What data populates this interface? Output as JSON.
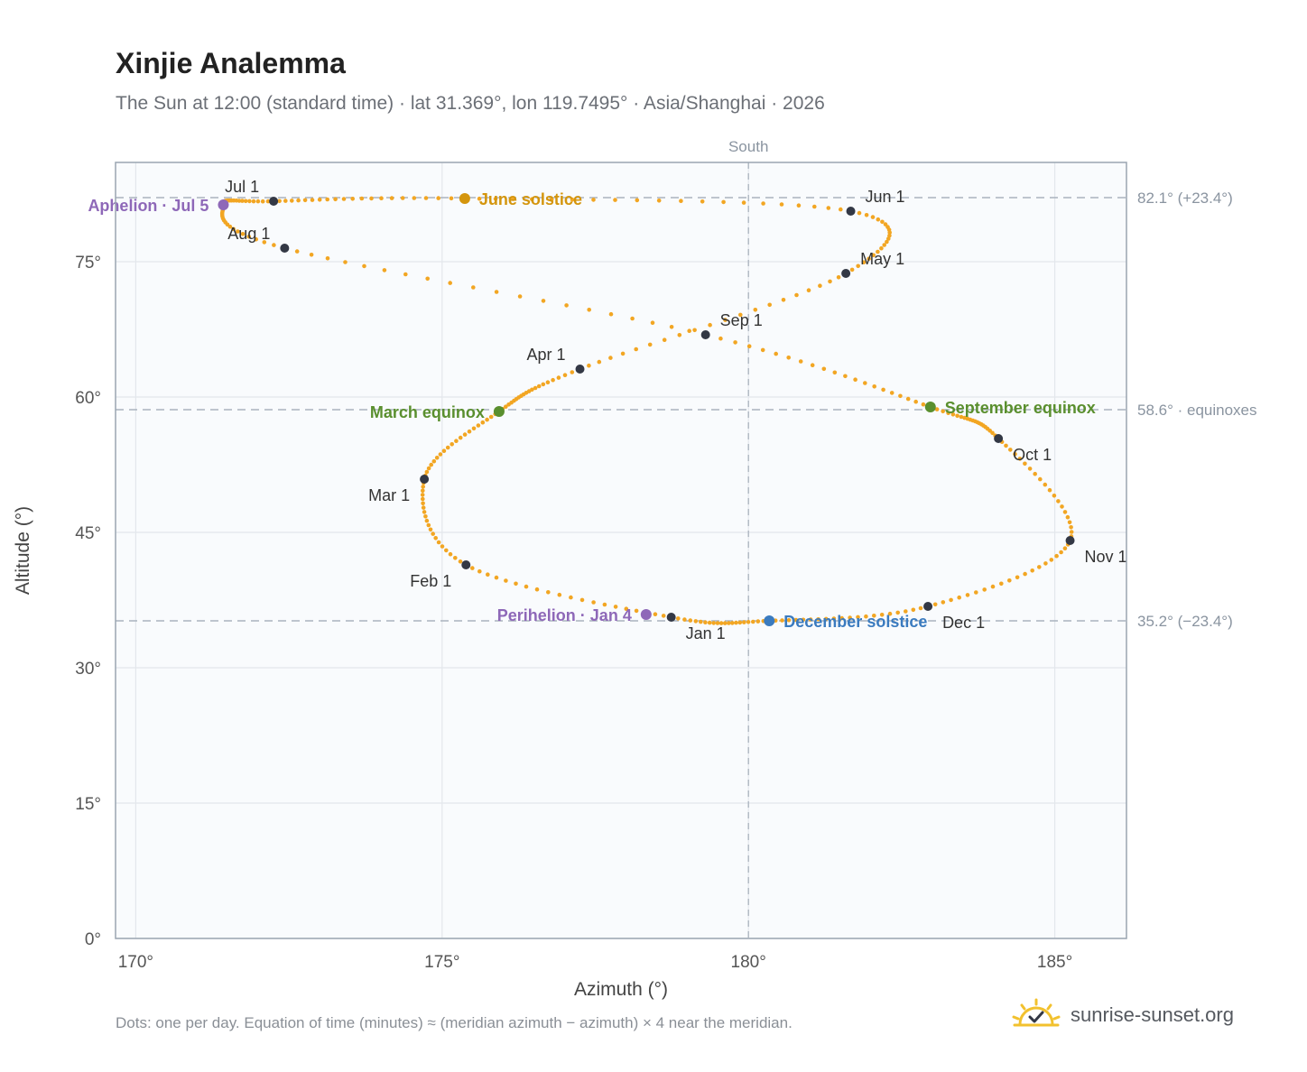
{
  "chart_title": "Xinjie Analemma",
  "chart_subtitle": "The Sun at 12:00 (standard time) · lat 31.369°, lon 119.7495° · Asia/Shanghai · 2026",
  "footnote": "Dots: one per day. Equation of time (minutes) ≈ (meridian azimuth − azimuth) × 4 near the meridian.",
  "brand": {
    "name": "sunrise-sunset.org",
    "icon": "sun-logo-icon"
  },
  "colors": {
    "trace": "#f2a623",
    "month_marker": "#333845",
    "equinox": "#5a8f2e",
    "june_solstice": "#d4950d",
    "december_solstice": "#3b7bbf",
    "apsis": "#8e68b8",
    "reference_line": "#aab3be",
    "plot_background": "#f9fbfd",
    "grid": "#e3e7ec",
    "axis_frame": "#9aa5b1"
  },
  "chart_data": {
    "type": "scatter",
    "xlabel": "Azimuth (°)",
    "ylabel": "Altitude (°)",
    "xlim": [
      169.67,
      186.17
    ],
    "ylim": [
      0,
      86
    ],
    "x_ticks": [
      170,
      175,
      180,
      185
    ],
    "x_tick_labels": [
      "170°",
      "175°",
      "180°",
      "185°"
    ],
    "y_ticks": [
      0,
      15,
      30,
      45,
      60,
      75
    ],
    "y_tick_labels": [
      "0°",
      "15°",
      "30°",
      "45°",
      "60°",
      "75°"
    ],
    "grid": true,
    "meridian": {
      "azimuth": 180,
      "label": "South"
    },
    "reference_lines": [
      {
        "altitude": 82.1,
        "label": "82.1° (+23.4°)"
      },
      {
        "altitude": 58.6,
        "label": "58.6° · equinoxes"
      },
      {
        "altitude": 35.2,
        "label": "35.2° (−23.4°)"
      }
    ],
    "daily_note": "one dot per day",
    "path_anchors": [
      {
        "date": "Jan 1",
        "azimuth": 178.74,
        "altitude": 35.6
      },
      {
        "date": "Feb 1",
        "azimuth": 175.39,
        "altitude": 41.4
      },
      {
        "date": "Mar 1",
        "azimuth": 174.71,
        "altitude": 50.9
      },
      {
        "date": "Mar 20",
        "azimuth": 175.93,
        "altitude": 58.4
      },
      {
        "date": "Apr 1",
        "azimuth": 177.25,
        "altitude": 63.1
      },
      {
        "date": "May 1",
        "azimuth": 181.59,
        "altitude": 73.7
      },
      {
        "date": "Jun 1",
        "azimuth": 181.67,
        "altitude": 80.6
      },
      {
        "date": "Jun 21",
        "azimuth": 175.37,
        "altitude": 82.0
      },
      {
        "date": "Jul 1",
        "azimuth": 172.25,
        "altitude": 81.7
      },
      {
        "date": "Jul 5",
        "azimuth": 171.43,
        "altitude": 81.3
      },
      {
        "date": "Aug 1",
        "azimuth": 172.43,
        "altitude": 76.5
      },
      {
        "date": "Sep 1",
        "azimuth": 179.3,
        "altitude": 66.9
      },
      {
        "date": "Sep 23",
        "azimuth": 182.97,
        "altitude": 58.9
      },
      {
        "date": "Oct 1",
        "azimuth": 184.08,
        "altitude": 55.4
      },
      {
        "date": "Nov 1",
        "azimuth": 185.25,
        "altitude": 44.1
      },
      {
        "date": "Dec 1",
        "azimuth": 182.93,
        "altitude": 36.8
      },
      {
        "date": "Dec 21",
        "azimuth": 180.34,
        "altitude": 35.2
      },
      {
        "date": "Jan 1",
        "azimuth": 178.74,
        "altitude": 35.6
      }
    ],
    "month_markers": [
      {
        "label": "Jan 1",
        "azimuth": 178.74,
        "altitude": 35.6,
        "label_pos": "below-right"
      },
      {
        "label": "Feb 1",
        "azimuth": 175.39,
        "altitude": 41.4,
        "label_pos": "below-left"
      },
      {
        "label": "Mar 1",
        "azimuth": 174.71,
        "altitude": 50.9,
        "label_pos": "below-left"
      },
      {
        "label": "Apr 1",
        "azimuth": 177.25,
        "altitude": 63.1,
        "label_pos": "above-left"
      },
      {
        "label": "May 1",
        "azimuth": 181.59,
        "altitude": 73.7,
        "label_pos": "above-right"
      },
      {
        "label": "Jun 1",
        "azimuth": 181.67,
        "altitude": 80.6,
        "label_pos": "above-right"
      },
      {
        "label": "Jul 1",
        "azimuth": 172.25,
        "altitude": 81.7,
        "label_pos": "above-left"
      },
      {
        "label": "Aug 1",
        "azimuth": 172.43,
        "altitude": 76.5,
        "label_pos": "above-left"
      },
      {
        "label": "Sep 1",
        "azimuth": 179.3,
        "altitude": 66.9,
        "label_pos": "above-right"
      },
      {
        "label": "Oct 1",
        "azimuth": 184.08,
        "altitude": 55.4,
        "label_pos": "below-right"
      },
      {
        "label": "Nov 1",
        "azimuth": 185.25,
        "altitude": 44.1,
        "label_pos": "below-right"
      },
      {
        "label": "Dec 1",
        "azimuth": 182.93,
        "altitude": 36.8,
        "label_pos": "below-right"
      }
    ],
    "events": [
      {
        "label": "June solstice",
        "azimuth": 175.37,
        "altitude": 82.0,
        "color": "#d4950d",
        "label_side": "right"
      },
      {
        "label": "December solstice",
        "azimuth": 180.34,
        "altitude": 35.2,
        "color": "#3b7bbf",
        "label_side": "right"
      },
      {
        "label": "March equinox",
        "azimuth": 175.93,
        "altitude": 58.4,
        "color": "#5a8f2e",
        "label_side": "left"
      },
      {
        "label": "September equinox",
        "azimuth": 182.97,
        "altitude": 58.9,
        "color": "#5a8f2e",
        "label_side": "right"
      },
      {
        "label": "Aphelion · Jul 5",
        "azimuth": 171.43,
        "altitude": 81.3,
        "color": "#8e68b8",
        "label_side": "left"
      },
      {
        "label": "Perihelion · Jan 4",
        "azimuth": 178.33,
        "altitude": 35.9,
        "color": "#8e68b8",
        "label_side": "left"
      }
    ]
  }
}
